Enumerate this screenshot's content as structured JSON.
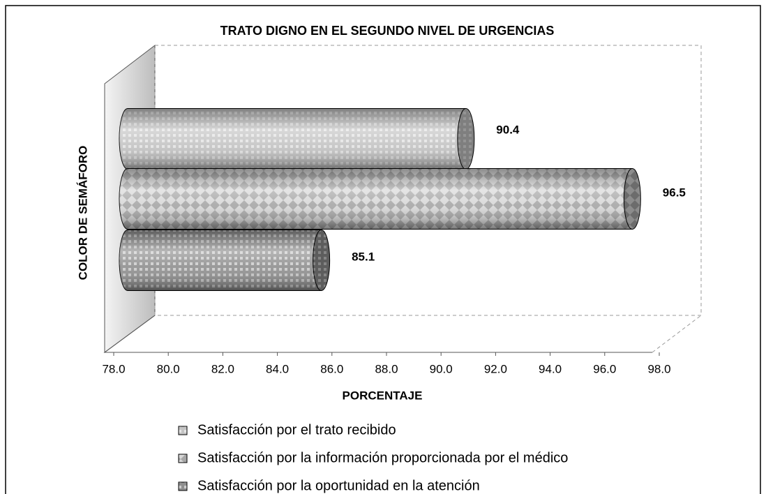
{
  "chart_data": {
    "type": "bar",
    "orientation": "horizontal",
    "title": "TRATO DIGNO EN EL SEGUNDO NIVEL DE URGENCIAS",
    "x_label": "PORCENTAJE",
    "y_label": "COLOR DE SEMÁFORO",
    "categories": [
      null
    ],
    "series": [
      {
        "name": "Satisfacción por el trato recibido",
        "color": "#c4c4c4",
        "values": [
          90.4
        ]
      },
      {
        "name": "Satisfacción por la información proporcionada por el médico",
        "color": "#a6a6a6",
        "values": [
          96.5
        ]
      },
      {
        "name": "Satisfacción por la oportunidad en la atención",
        "color": "#8f8f8f",
        "values": [
          85.1
        ]
      }
    ],
    "xlim": [
      78,
      98
    ],
    "xticks": [
      {
        "value": 78,
        "label": "78.0"
      },
      {
        "value": 80,
        "label": "80.0"
      },
      {
        "value": 82,
        "label": "82.0"
      },
      {
        "value": 84,
        "label": "84.0"
      },
      {
        "value": 86,
        "label": "86.0"
      },
      {
        "value": 88,
        "label": "88.0"
      },
      {
        "value": 90,
        "label": "90.0"
      },
      {
        "value": 92,
        "label": "92.0"
      },
      {
        "value": 94,
        "label": "94.0"
      },
      {
        "value": 96,
        "label": "96.0"
      },
      {
        "value": 98,
        "label": "98.0"
      }
    ],
    "grid": false,
    "legend": "bottom"
  }
}
